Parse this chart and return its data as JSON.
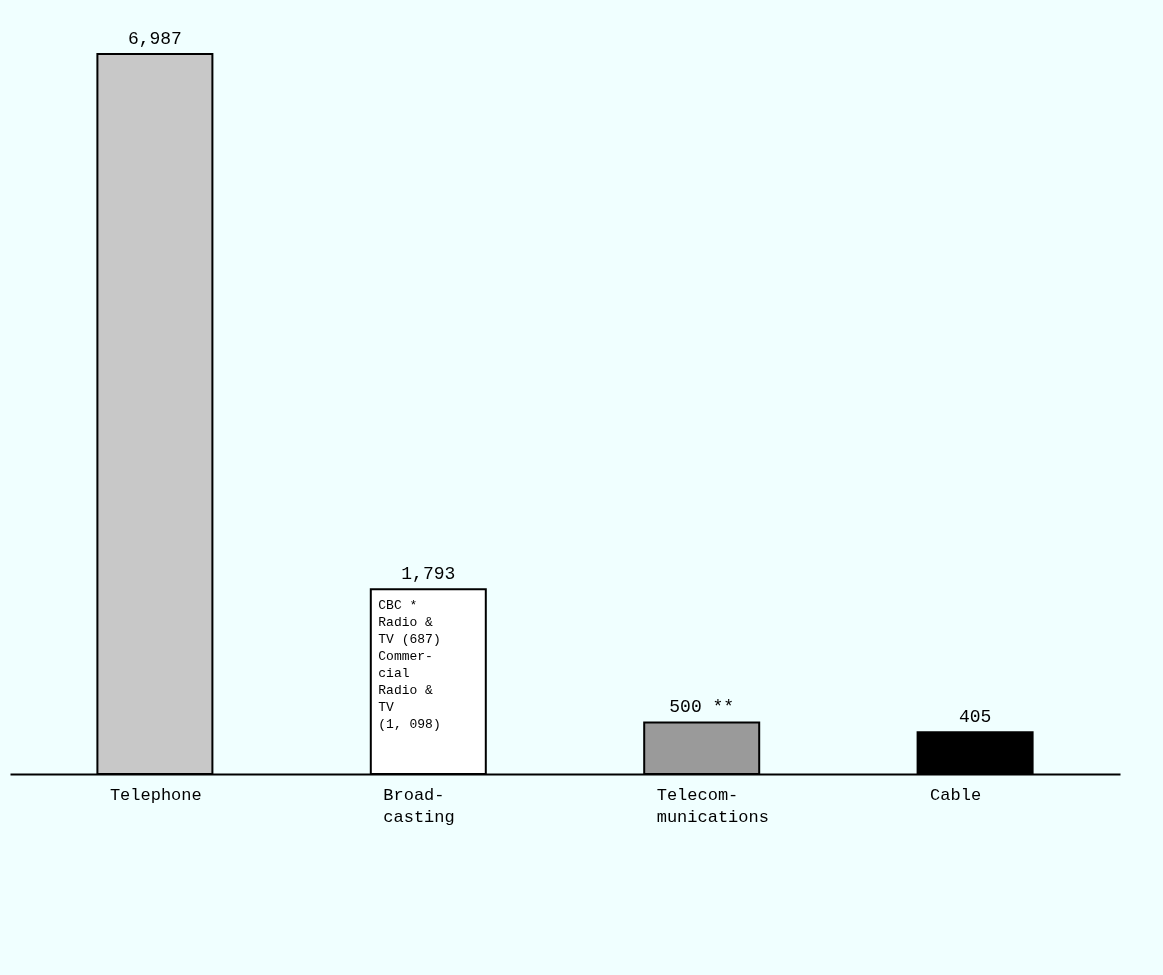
{
  "chart_data": {
    "type": "bar",
    "categories": [
      "Telephone",
      "Broad-\ncasting",
      "Telecom-\nmunications",
      "Cable"
    ],
    "values": [
      6987,
      1793,
      500,
      405
    ],
    "value_labels": [
      "6,987",
      "1,793",
      "500 **",
      "405"
    ],
    "colors": [
      "#c8c8c8",
      "#ffffff",
      "#9a9a9a",
      "#000000"
    ],
    "annotations": [
      "CBC *\nRadio &\nTV  (687)",
      "Commer-\ncial\nRadio &\nTV\n (1, 098)"
    ],
    "legend": false
  }
}
